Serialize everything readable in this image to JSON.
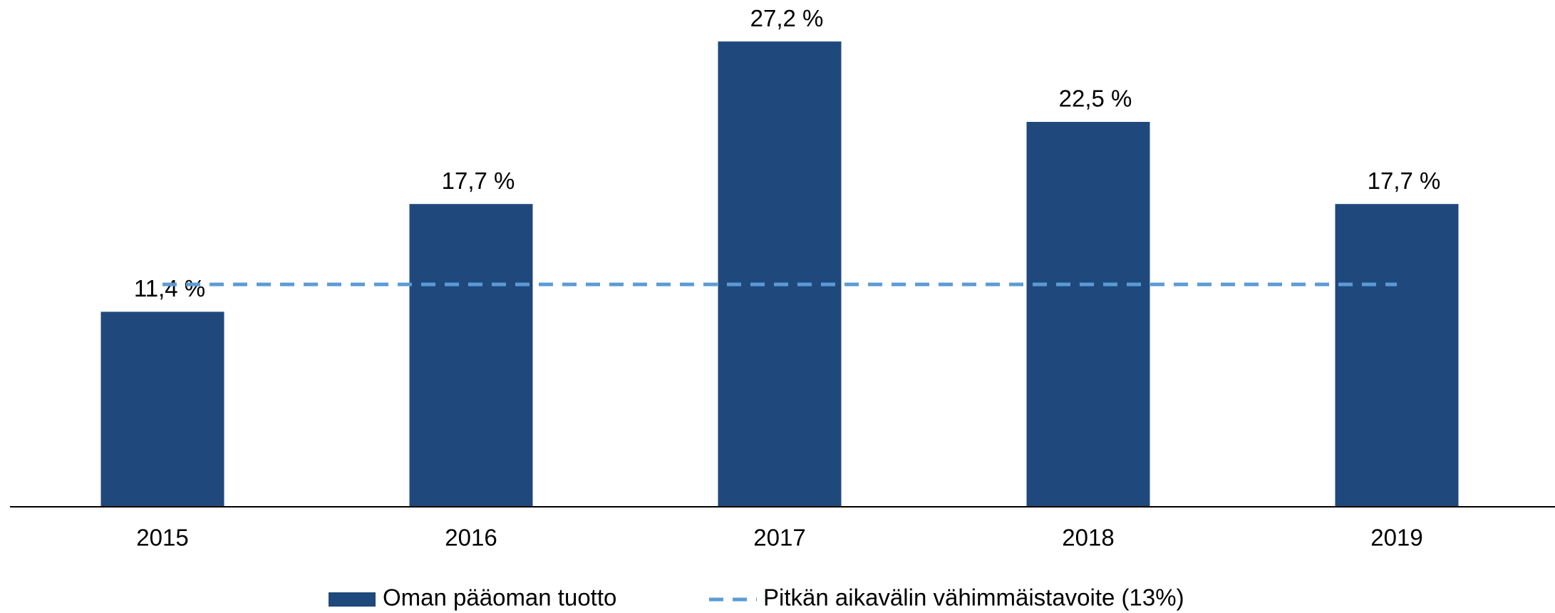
{
  "chart_data": {
    "type": "bar",
    "categories": [
      "2015",
      "2016",
      "2017",
      "2018",
      "2019"
    ],
    "series": [
      {
        "name": "Oman pääoman tuotto",
        "type": "bar",
        "color": "#1f497d",
        "values": [
          11.4,
          17.7,
          27.2,
          22.5,
          17.7
        ],
        "value_labels": [
          "11,4 %",
          "17,7 %",
          "27,2 %",
          "22,5 %",
          "17,7 %"
        ]
      },
      {
        "name": "Pitkän aikavälin vähimmäistavoite (13%)",
        "type": "line",
        "dashed": true,
        "color": "#5b9bd5",
        "values": [
          13,
          13,
          13,
          13,
          13
        ]
      }
    ],
    "ylim": [
      0,
      30
    ],
    "grid": false,
    "legend": "bottom"
  }
}
